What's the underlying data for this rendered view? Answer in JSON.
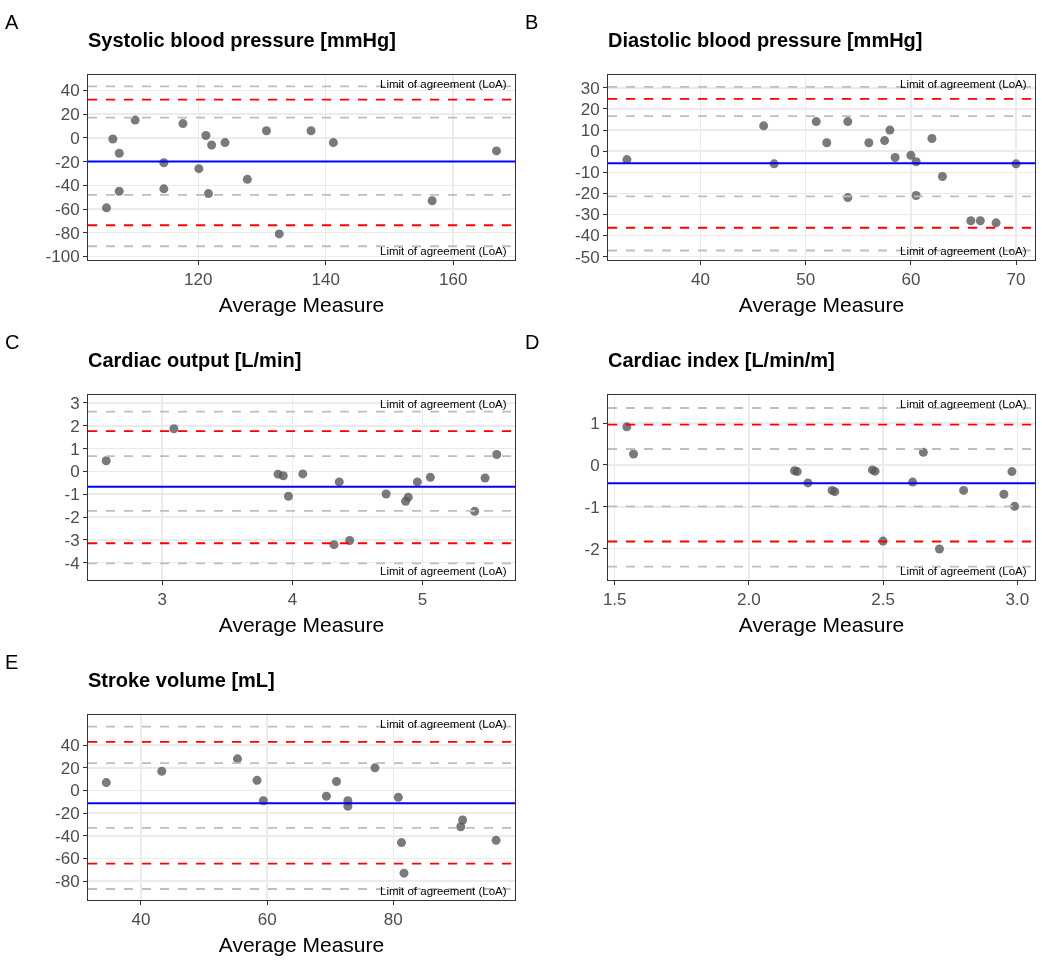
{
  "chart_data": [
    {
      "type": "scatter",
      "title": "Systolic blood pressure [mmHg]",
      "xlabel": "Average Measure",
      "annotations": [
        "A",
        "Limit of agreement (LoA)",
        "Limit of agreement (LoA)"
      ],
      "marker": "circle",
      "grid": true,
      "series": [
        {
          "color": "#595959",
          "x": [
            105.6,
            106.6,
            107.6,
            107.6,
            110.1,
            114.6,
            114.6,
            117.6,
            120.1,
            121.2,
            121.6,
            122.1,
            124.2,
            127.7,
            130.7,
            132.7,
            137.7,
            141.2,
            156.7,
            166.8
          ],
          "values": [
            -59,
            -1,
            -13,
            -45,
            15,
            -21,
            -43,
            12,
            -26,
            2,
            -47,
            -6,
            -4,
            -35,
            6,
            -81,
            6,
            -4,
            -53,
            -11
          ]
        }
      ],
      "xlim": [
        102.7,
        169.7
      ],
      "xticks": [
        120,
        140,
        160
      ],
      "ylim": [
        -103,
        53
      ],
      "yticks": [
        40,
        20,
        0,
        -20,
        -40,
        -60,
        -80,
        -100
      ],
      "ref_lines": [
        {
          "axis": "y",
          "value": -20,
          "color": "#0000ff",
          "line_style": "solid"
        },
        {
          "axis": "y",
          "value": 32.3,
          "color": "#ff0000",
          "line_style": "dashed"
        },
        {
          "axis": "y",
          "value": -73.7,
          "color": "#ff0000",
          "line_style": "dashed"
        },
        {
          "axis": "y",
          "value": 43.4,
          "color": "#bebebe",
          "line_style": "dashed"
        },
        {
          "axis": "y",
          "value": 17.1,
          "color": "#bebebe",
          "line_style": "dashed"
        },
        {
          "axis": "y",
          "value": -48,
          "color": "#bebebe",
          "line_style": "dashed"
        },
        {
          "axis": "y",
          "value": -91.4,
          "color": "#bebebe",
          "line_style": "dashed"
        }
      ]
    },
    {
      "type": "scatter",
      "title": "Diastolic blood pressure [mmHg]",
      "xlabel": "Average Measure",
      "annotations": [
        "B",
        "Limit of agreement (LoA)",
        "Limit of agreement (LoA)"
      ],
      "marker": "circle",
      "grid": true,
      "series": [
        {
          "color": "#595959",
          "x": [
            33,
            46,
            47,
            51,
            52,
            54,
            54,
            56,
            57.5,
            58,
            58.5,
            60,
            60.5,
            60.5,
            62,
            63,
            65.7,
            66.6,
            68.1,
            70
          ],
          "values": [
            -4,
            12,
            -6,
            14,
            4,
            14,
            -22,
            4,
            5,
            10,
            -3,
            -2,
            -5,
            -21,
            6,
            -12,
            -33,
            -33,
            -34,
            -6
          ]
        }
      ],
      "xlim": [
        31.2,
        71.8
      ],
      "xticks": [
        40,
        50,
        60,
        70
      ],
      "ylim": [
        -51.6,
        36.1
      ],
      "yticks": [
        30,
        20,
        10,
        0,
        -10,
        -20,
        -30,
        -40,
        -50
      ],
      "ref_lines": [
        {
          "axis": "y",
          "value": -5.7,
          "color": "#0000ff",
          "line_style": "solid"
        },
        {
          "axis": "y",
          "value": 24.8,
          "color": "#ff0000",
          "line_style": "dashed"
        },
        {
          "axis": "y",
          "value": -36.3,
          "color": "#ff0000",
          "line_style": "dashed"
        },
        {
          "axis": "y",
          "value": 30.5,
          "color": "#bebebe",
          "line_style": "dashed"
        },
        {
          "axis": "y",
          "value": 16.6,
          "color": "#bebebe",
          "line_style": "dashed"
        },
        {
          "axis": "y",
          "value": -21.4,
          "color": "#bebebe",
          "line_style": "dashed"
        },
        {
          "axis": "y",
          "value": -47.1,
          "color": "#bebebe",
          "line_style": "dashed"
        }
      ]
    },
    {
      "type": "scatter",
      "title": "Cardiac output [L/min]",
      "xlabel": "Average Measure",
      "annotations": [
        "C",
        "Limit of agreement (LoA)",
        "Limit of agreement (LoA)"
      ],
      "marker": "circle",
      "grid": true,
      "series": [
        {
          "color": "#595959",
          "x": [
            2.57,
            3.09,
            3.89,
            3.93,
            3.97,
            4.08,
            4.32,
            4.36,
            4.44,
            4.72,
            4.87,
            4.89,
            4.96,
            5.06,
            5.4,
            5.48,
            5.57
          ],
          "values": [
            0.47,
            1.87,
            -0.12,
            -0.19,
            -1.09,
            -0.11,
            -3.21,
            -0.46,
            -3.03,
            -0.99,
            -1.31,
            -1.13,
            -0.46,
            -0.26,
            -1.75,
            -0.29,
            0.74
          ]
        }
      ],
      "xlim": [
        2.43,
        5.71
      ],
      "xticks": [
        3,
        4,
        5
      ],
      "ylim": [
        -4.76,
        3.35
      ],
      "yticks": [
        3,
        2,
        1,
        0,
        -1,
        -2,
        -3,
        -4
      ],
      "ref_lines": [
        {
          "axis": "y",
          "value": -0.67,
          "color": "#0000ff",
          "line_style": "solid"
        },
        {
          "axis": "y",
          "value": 1.77,
          "color": "#ff0000",
          "line_style": "dashed"
        },
        {
          "axis": "y",
          "value": -3.15,
          "color": "#ff0000",
          "line_style": "dashed"
        },
        {
          "axis": "y",
          "value": 2.62,
          "color": "#bebebe",
          "line_style": "dashed"
        },
        {
          "axis": "y",
          "value": 0.67,
          "color": "#bebebe",
          "line_style": "dashed"
        },
        {
          "axis": "y",
          "value": -1.73,
          "color": "#bebebe",
          "line_style": "dashed"
        },
        {
          "axis": "y",
          "value": -4.03,
          "color": "#bebebe",
          "line_style": "dashed"
        }
      ]
    },
    {
      "type": "scatter",
      "title": "Cardiac index [L/min/m]",
      "xlabel": "Average Measure",
      "annotations": [
        "D",
        "Limit of agreement (LoA)",
        "Limit of agreement (LoA)"
      ],
      "marker": "circle",
      "grid": true,
      "series": [
        {
          "color": "#595959",
          "x": [
            1.545,
            1.57,
            2.17,
            2.18,
            2.22,
            2.31,
            2.32,
            2.46,
            2.47,
            2.5,
            2.61,
            2.65,
            2.71,
            2.8,
            2.95,
            2.98,
            2.99
          ],
          "values": [
            0.91,
            0.26,
            -0.14,
            -0.16,
            -0.43,
            -0.61,
            -0.64,
            -0.12,
            -0.15,
            -1.82,
            -0.41,
            0.3,
            -2.01,
            -0.61,
            -0.7,
            -0.16,
            -0.99
          ]
        }
      ],
      "xlim": [
        1.475,
        3.066
      ],
      "xticks": [
        1.5,
        {
          "value": 2,
          "label": "2.0"
        },
        2.5,
        {
          "value": 3,
          "label": "3.0"
        }
      ],
      "ylim": [
        -2.75,
        1.67
      ],
      "yticks": [
        1,
        0,
        -1,
        -2
      ],
      "ref_lines": [
        {
          "axis": "y",
          "value": -0.44,
          "color": "#0000ff",
          "line_style": "solid"
        },
        {
          "axis": "y",
          "value": 0.96,
          "color": "#ff0000",
          "line_style": "dashed"
        },
        {
          "axis": "y",
          "value": -1.83,
          "color": "#ff0000",
          "line_style": "dashed"
        },
        {
          "axis": "y",
          "value": 1.36,
          "color": "#bebebe",
          "line_style": "dashed"
        },
        {
          "axis": "y",
          "value": 0.38,
          "color": "#bebebe",
          "line_style": "dashed"
        },
        {
          "axis": "y",
          "value": -0.99,
          "color": "#bebebe",
          "line_style": "dashed"
        },
        {
          "axis": "y",
          "value": -2.43,
          "color": "#bebebe",
          "line_style": "dashed"
        }
      ]
    },
    {
      "type": "scatter",
      "title": "Stroke volume [mL]",
      "xlabel": "Average Measure",
      "annotations": [
        "E",
        "Limit of agreement (LoA)",
        "Limit of agreement (LoA)"
      ],
      "marker": "circle",
      "grid": true,
      "series": [
        {
          "color": "#595959",
          "x": [
            34.5,
            43.3,
            55.3,
            58.4,
            59.4,
            69.4,
            71,
            72.8,
            72.8,
            77.1,
            80.8,
            81.3,
            81.7,
            90.7,
            91,
            96.3
          ],
          "values": [
            7,
            17,
            28,
            9,
            -9,
            -5,
            8,
            -9,
            -14,
            20,
            -6,
            -46,
            -73,
            -32,
            -26,
            -44
          ]
        }
      ],
      "xlim": [
        31.6,
        99.3
      ],
      "xticks": [
        40,
        60,
        80
      ],
      "ylim": [
        -96.7,
        66.7
      ],
      "yticks": [
        40,
        20,
        0,
        -20,
        -40,
        -60,
        -80
      ],
      "ref_lines": [
        {
          "axis": "y",
          "value": -11.2,
          "color": "#0000ff",
          "line_style": "solid"
        },
        {
          "axis": "y",
          "value": 43,
          "color": "#ff0000",
          "line_style": "dashed"
        },
        {
          "axis": "y",
          "value": -64.5,
          "color": "#ff0000",
          "line_style": "dashed"
        },
        {
          "axis": "y",
          "value": 56.4,
          "color": "#bebebe",
          "line_style": "dashed"
        },
        {
          "axis": "y",
          "value": 24.2,
          "color": "#bebebe",
          "line_style": "dashed"
        },
        {
          "axis": "y",
          "value": -33,
          "color": "#bebebe",
          "line_style": "dashed"
        },
        {
          "axis": "y",
          "value": -87,
          "color": "#bebebe",
          "line_style": "dashed"
        }
      ]
    }
  ]
}
